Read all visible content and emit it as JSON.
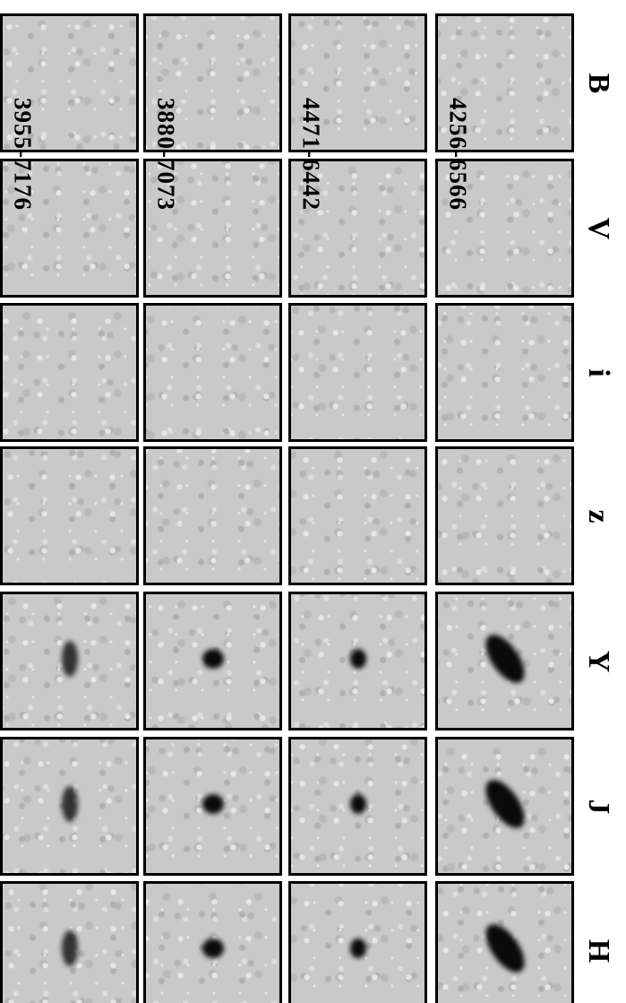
{
  "bands": [
    "B",
    "V",
    "i",
    "z",
    "Y",
    "J",
    "H"
  ],
  "objects": [
    "3955-7176",
    "3880-7073",
    "4471-6442",
    "4256-6566"
  ]
}
